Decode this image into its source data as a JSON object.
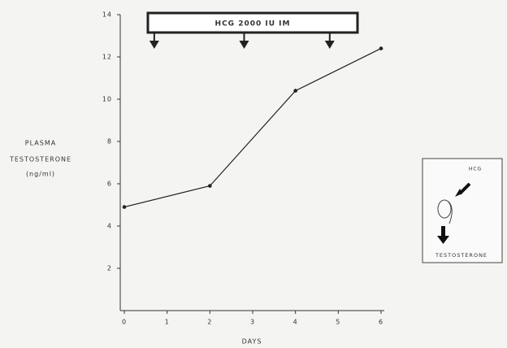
{
  "chart_data": {
    "type": "line",
    "y_label": [
      "PLASMA",
      "TESTOSTERONE",
      "(ng/ml)"
    ],
    "x_label": "DAYS",
    "x": [
      0,
      2,
      4,
      6
    ],
    "values": [
      4.9,
      5.9,
      10.4,
      12.4
    ],
    "color": "#222222",
    "xlim": [
      0,
      6
    ],
    "xticks": [
      0,
      1,
      2,
      3,
      4,
      5,
      6
    ],
    "ylim": [
      0,
      14
    ],
    "yticks": [
      2,
      4,
      6,
      8,
      10,
      12,
      14
    ],
    "annotation": {
      "text": "HCG 2000 IU IM",
      "arrows_x": [
        0.7,
        2.8,
        4.8
      ]
    },
    "inset": {
      "labels": [
        "HCG",
        "TESTOSTERONE"
      ]
    }
  }
}
